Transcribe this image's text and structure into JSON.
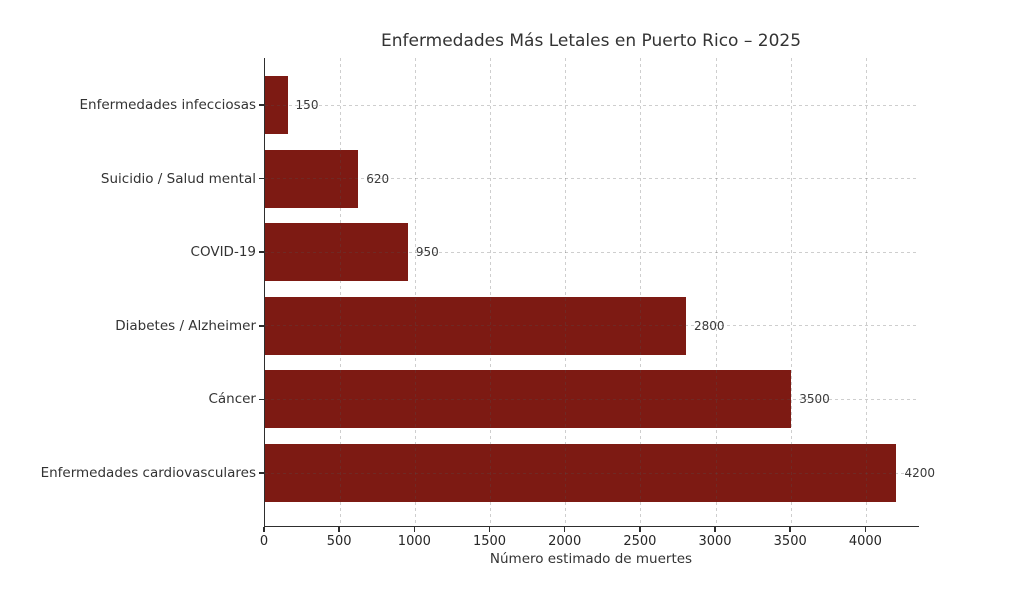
{
  "figure": {
    "title": "Enfermedades Más Letales en Puerto Rico – 2025",
    "x_axis_title": "Número estimado de muertes"
  },
  "chart_data": {
    "type": "bar",
    "orientation": "horizontal",
    "title": "Enfermedades Más Letales en Puerto Rico – 2025",
    "xlabel": "Número estimado de muertes",
    "ylabel": "",
    "categories_top_to_bottom": [
      "Enfermedades infecciosas",
      "Suicidio / Salud mental",
      "COVID-19",
      "Diabetes / Alzheimer",
      "Cáncer",
      "Enfermedades cardiovasculares"
    ],
    "values_top_to_bottom": [
      150,
      620,
      950,
      2800,
      3500,
      4200
    ],
    "bar_value_labels": [
      "150",
      "620",
      "950",
      "2800",
      "3500",
      "4200"
    ],
    "xticks": [
      0,
      500,
      1000,
      1500,
      2000,
      2500,
      3000,
      3500,
      4000
    ],
    "xtick_labels": [
      "0",
      "500",
      "1000",
      "1500",
      "2000",
      "2500",
      "3000",
      "3500",
      "4000"
    ],
    "xlim": [
      0,
      4350
    ],
    "grid": true,
    "grid_style": "dashed",
    "legend": "none",
    "bar_color": "#7d1a13",
    "axis_color": "#2e2e2e",
    "text_color": "#333333"
  }
}
